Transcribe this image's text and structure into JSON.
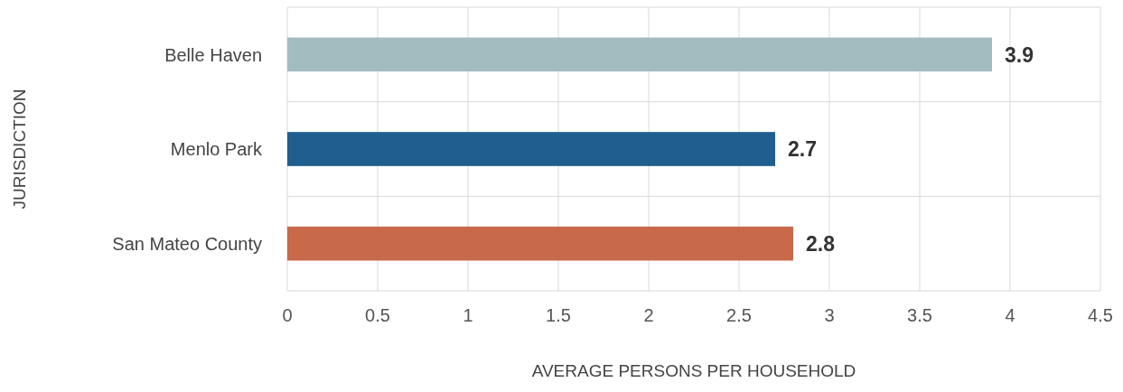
{
  "chart_data": {
    "type": "bar",
    "orientation": "horizontal",
    "xlabel": "AVERAGE PERSONS PER HOUSEHOLD",
    "ylabel": "JURISDICTION",
    "categories": [
      "Belle Haven",
      "Menlo Park",
      "San Mateo County"
    ],
    "values": [
      3.9,
      2.7,
      2.8
    ],
    "colors": [
      "#a3bcc0",
      "#1f5e8e",
      "#c8694a"
    ],
    "xlim": [
      0,
      4.5
    ],
    "xticks": [
      0,
      0.5,
      1,
      1.5,
      2,
      2.5,
      3,
      3.5,
      4,
      4.5
    ],
    "grid": true,
    "data_labels": true
  }
}
